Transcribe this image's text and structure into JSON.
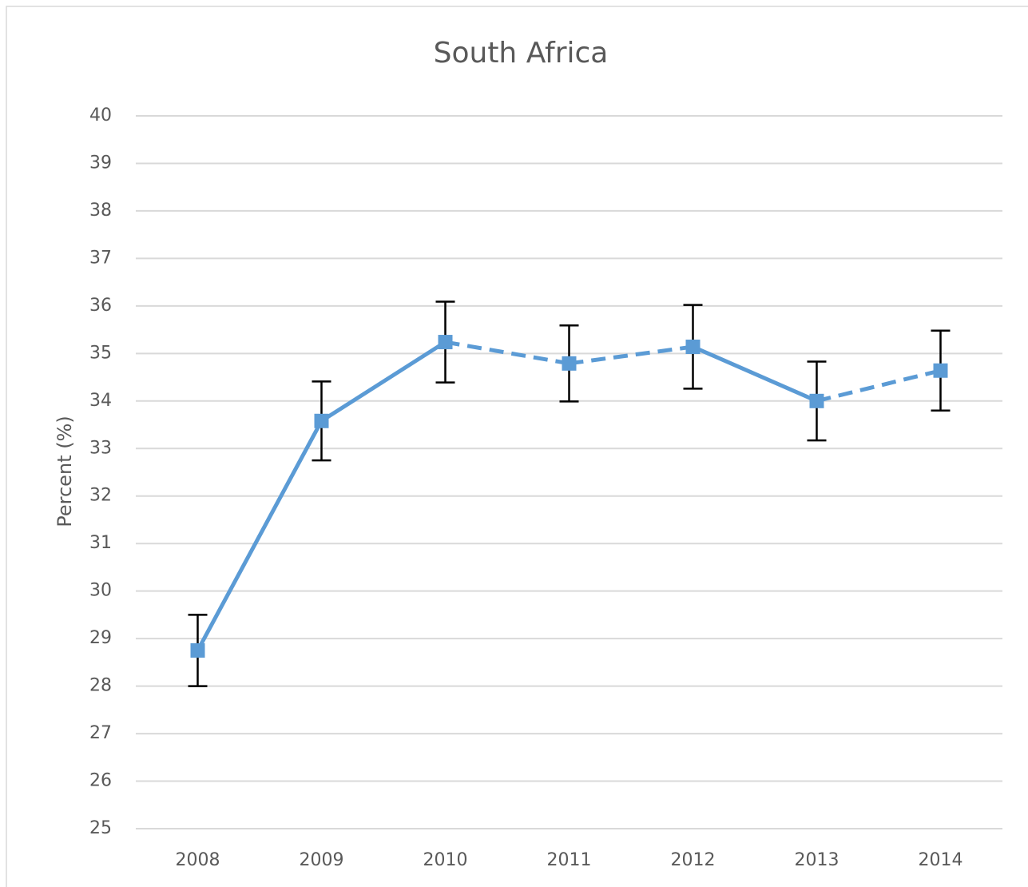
{
  "chart_data": {
    "type": "line",
    "title": "South Africa",
    "y_label": "Percent (%)",
    "categories": [
      "2008",
      "2009",
      "2010",
      "2011",
      "2012",
      "2013",
      "2014"
    ],
    "series": [
      {
        "name": "South Africa",
        "color": "#5b9bd5",
        "values": [
          28.75,
          33.58,
          35.24,
          34.79,
          35.14,
          34.0,
          34.64
        ],
        "errors": [
          0.75,
          0.83,
          0.85,
          0.8,
          0.88,
          0.83,
          0.84
        ],
        "segment_styles": [
          "solid",
          "solid",
          "dashed",
          "dashed",
          "solid",
          "dashed"
        ]
      }
    ],
    "ylim": [
      25,
      40
    ],
    "yticks": [
      25,
      26,
      27,
      28,
      29,
      30,
      31,
      32,
      33,
      34,
      35,
      36,
      37,
      38,
      39,
      40
    ],
    "grid": true,
    "error_bar_color": "#000000"
  }
}
